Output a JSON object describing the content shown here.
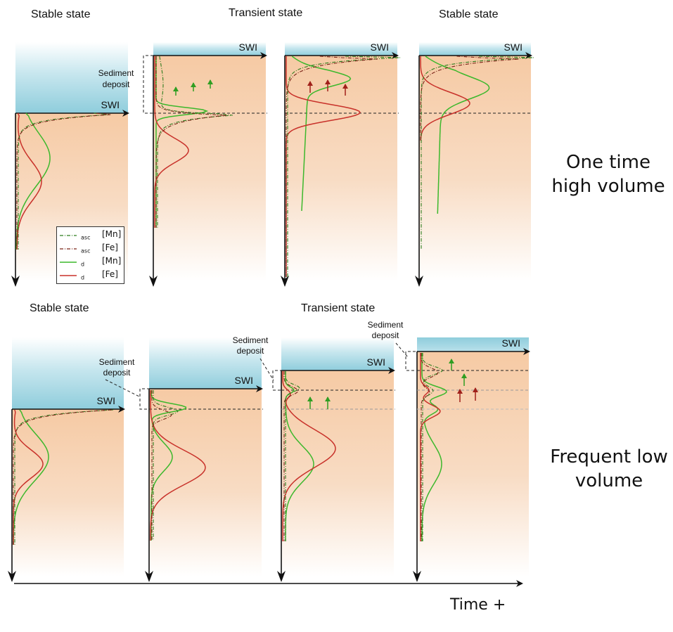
{
  "titles": {
    "top_stable_left": "Stable state",
    "top_transient": "Transient state",
    "top_stable_right": "Stable state",
    "bottom_stable": "Stable state",
    "bottom_transient": "Transient state"
  },
  "labels": {
    "swi": "SWI",
    "sediment_deposit": "Sediment deposit",
    "one_time": "One time\nhigh volume",
    "frequent": "Frequent low\nvolume",
    "time": "Time +"
  },
  "legend": {
    "items": [
      {
        "main": "[Mn]",
        "sub": "asc",
        "color": "#2e7d1e",
        "style": "dashdot"
      },
      {
        "main": "[Fe]",
        "sub": "asc",
        "color": "#7a2418",
        "style": "dashdot"
      },
      {
        "main": "[Mn]",
        "sub": "d",
        "color": "#3cb82c",
        "style": "solid"
      },
      {
        "main": "[Fe]",
        "sub": "d",
        "color": "#c8312a",
        "style": "solid"
      }
    ]
  },
  "colors": {
    "water": "#a9d8e3",
    "sediment": "#f6cfae",
    "mn_d": "#3cb82c",
    "fe_d": "#c8312a",
    "mn_asc": "#2e7d1e",
    "fe_asc": "#7a2418",
    "arrow_green": "#2f9e22",
    "arrow_red": "#a0201a"
  }
}
